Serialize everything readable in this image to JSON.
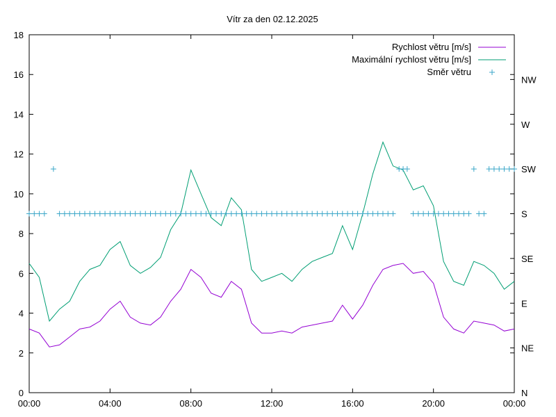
{
  "chart_data": {
    "type": "line",
    "title": "Vítr za den 02.12.2025",
    "xlabel": "",
    "ylabel": "",
    "x_range_hours": [
      0,
      24
    ],
    "x_ticks": [
      "00:00",
      "04:00",
      "08:00",
      "12:00",
      "16:00",
      "20:00",
      "00:00"
    ],
    "ylim": [
      0,
      18
    ],
    "y_ticks": [
      "0",
      "2",
      "4",
      "6",
      "8",
      "10",
      "12",
      "14",
      "16",
      "18"
    ],
    "y2_ticks": [
      "N",
      "NE",
      "E",
      "SE",
      "S",
      "SW",
      "W",
      "NW"
    ],
    "legend_position": "top-right",
    "series": [
      {
        "name": "Rychlost větru [m/s]",
        "color": "#9400d3",
        "kind": "line",
        "hours": [
          0,
          0.5,
          1,
          1.5,
          2,
          2.5,
          3,
          3.5,
          4,
          4.5,
          5,
          5.5,
          6,
          6.5,
          7,
          7.5,
          8,
          8.5,
          9,
          9.5,
          10,
          10.5,
          11,
          11.5,
          12,
          12.5,
          13,
          13.5,
          14,
          14.5,
          15,
          15.5,
          16,
          16.5,
          17,
          17.5,
          18,
          18.5,
          19,
          19.5,
          20,
          20.5,
          21,
          21.5,
          22,
          22.5,
          23,
          23.5,
          24
        ],
        "values": [
          3.2,
          3.0,
          2.3,
          2.4,
          2.8,
          3.2,
          3.3,
          3.6,
          4.2,
          4.6,
          3.8,
          3.5,
          3.4,
          3.8,
          4.6,
          5.2,
          6.2,
          5.8,
          5.0,
          4.8,
          5.6,
          5.2,
          3.5,
          3.0,
          3.0,
          3.1,
          3.0,
          3.3,
          3.4,
          3.5,
          3.6,
          4.4,
          3.7,
          4.4,
          5.4,
          6.2,
          6.4,
          6.5,
          6.0,
          6.1,
          5.5,
          3.8,
          3.2,
          3.0,
          3.6,
          3.5,
          3.4,
          3.1,
          3.2
        ]
      },
      {
        "name": "Maximální rychlost větru [m/s]",
        "color": "#009e73",
        "kind": "line",
        "hours": [
          0,
          0.5,
          1,
          1.5,
          2,
          2.5,
          3,
          3.5,
          4,
          4.5,
          5,
          5.5,
          6,
          6.5,
          7,
          7.5,
          8,
          8.5,
          9,
          9.5,
          10,
          10.5,
          11,
          11.5,
          12,
          12.5,
          13,
          13.5,
          14,
          14.5,
          15,
          15.5,
          16,
          16.5,
          17,
          17.5,
          18,
          18.5,
          19,
          19.5,
          20,
          20.5,
          21,
          21.5,
          22,
          22.5,
          23,
          23.5,
          24
        ],
        "values": [
          6.5,
          5.8,
          3.6,
          4.2,
          4.6,
          5.6,
          6.2,
          6.4,
          7.2,
          7.6,
          6.4,
          6.0,
          6.3,
          6.8,
          8.2,
          9.0,
          11.2,
          10.0,
          8.8,
          8.4,
          9.8,
          9.2,
          6.2,
          5.6,
          5.8,
          6.0,
          5.6,
          6.2,
          6.6,
          6.8,
          7.0,
          8.4,
          7.2,
          9.0,
          11.0,
          12.6,
          11.4,
          11.2,
          10.2,
          10.4,
          9.4,
          6.6,
          5.6,
          5.4,
          6.6,
          6.4,
          6.0,
          5.2,
          5.6
        ]
      },
      {
        "name": "Směr větru",
        "color": "#3aa6c8",
        "kind": "points",
        "axis": "y2",
        "hours": [
          0,
          0.25,
          0.5,
          0.75,
          1.2,
          1.5,
          1.75,
          2,
          2.25,
          2.5,
          2.75,
          3,
          3.25,
          3.5,
          3.75,
          4,
          4.25,
          4.5,
          4.75,
          5,
          5.25,
          5.5,
          5.75,
          6,
          6.25,
          6.5,
          6.75,
          7,
          7.25,
          7.5,
          7.75,
          8,
          8.25,
          8.5,
          8.75,
          9,
          9.25,
          9.5,
          9.75,
          10,
          10.25,
          10.5,
          10.75,
          11,
          11.25,
          11.5,
          11.75,
          12,
          12.25,
          12.5,
          12.75,
          13,
          13.25,
          13.5,
          13.75,
          14,
          14.25,
          14.5,
          14.75,
          15,
          15.25,
          15.5,
          15.75,
          16,
          16.25,
          16.5,
          16.75,
          17,
          17.25,
          17.5,
          17.75,
          18,
          18.3,
          18.5,
          18.7,
          19,
          19.25,
          19.5,
          19.75,
          20,
          20.25,
          20.5,
          20.75,
          21,
          21.25,
          21.5,
          21.75,
          22,
          22.25,
          22.5,
          22.75,
          23,
          23.25,
          23.5,
          23.75,
          24
        ],
        "values": [
          4,
          4,
          4,
          4,
          5,
          4,
          4,
          4,
          4,
          4,
          4,
          4,
          4,
          4,
          4,
          4,
          4,
          4,
          4,
          4,
          4,
          4,
          4,
          4,
          4,
          4,
          4,
          4,
          4,
          4,
          4,
          4,
          4,
          4,
          4,
          4,
          4,
          4,
          4,
          4,
          4,
          4,
          4,
          4,
          4,
          4,
          4,
          4,
          4,
          4,
          4,
          4,
          4,
          4,
          4,
          4,
          4,
          4,
          4,
          4,
          4,
          4,
          4,
          4,
          4,
          4,
          4,
          4,
          4,
          4,
          4,
          4,
          5,
          5,
          5,
          4,
          4,
          4,
          4,
          4,
          4,
          4,
          4,
          4,
          4,
          4,
          4,
          5,
          4,
          4,
          5,
          5,
          5,
          5,
          5,
          5
        ]
      }
    ]
  }
}
